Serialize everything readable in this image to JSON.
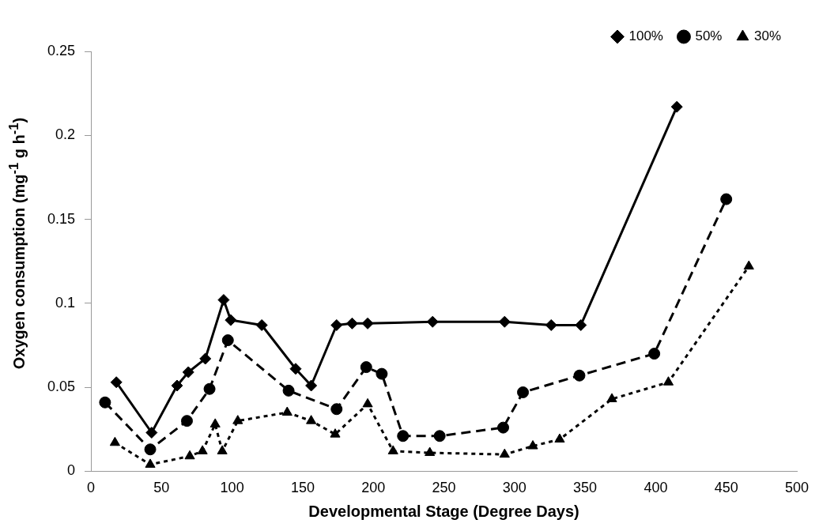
{
  "chart_data": {
    "type": "line",
    "xlabel": "Developmental Stage (Degree Days)",
    "ylabel": "Oxygen consumption (mg$^{-1}$ g h$^{-1}$)",
    "xlim": [
      0,
      500
    ],
    "xticks": [
      0,
      50,
      100,
      150,
      200,
      250,
      300,
      350,
      400,
      450,
      500
    ],
    "ylim": [
      0,
      0.25
    ],
    "yticks": [
      0,
      0.05,
      0.1,
      0.15,
      0.2,
      0.25
    ],
    "grid": false,
    "legend": "top right",
    "series": [
      {
        "name": "100%",
        "color": "#000000",
        "marker": "diamond",
        "line_style": "solid",
        "x": [
          18,
          43,
          61,
          69,
          81,
          94,
          99,
          121,
          145,
          156,
          174,
          185,
          196,
          242,
          293,
          326,
          347,
          415
        ],
        "values": [
          0.053,
          0.023,
          0.051,
          0.059,
          0.067,
          0.102,
          0.09,
          0.087,
          0.061,
          0.051,
          0.087,
          0.088,
          0.088,
          0.089,
          0.089,
          0.087,
          0.087,
          0.217
        ]
      },
      {
        "name": "50%",
        "color": "#000000",
        "marker": "circle",
        "line_style": "dashed",
        "x": [
          10,
          42,
          68,
          84,
          97,
          140,
          174,
          195,
          206,
          221,
          247,
          292,
          306,
          346,
          399,
          450
        ],
        "values": [
          0.041,
          0.013,
          0.03,
          0.049,
          0.078,
          0.048,
          0.037,
          0.062,
          0.058,
          0.021,
          0.021,
          0.026,
          0.047,
          0.057,
          0.07,
          0.162
        ]
      },
      {
        "name": "30%",
        "color": "#000000",
        "marker": "triangle",
        "line_style": "dotted",
        "x": [
          17,
          42,
          70,
          79,
          88,
          93,
          104,
          139,
          156,
          173,
          196,
          214,
          240,
          293,
          313,
          332,
          369,
          409,
          466
        ],
        "values": [
          0.017,
          0.004,
          0.009,
          0.012,
          0.028,
          0.012,
          0.03,
          0.035,
          0.03,
          0.022,
          0.04,
          0.012,
          0.011,
          0.01,
          0.015,
          0.019,
          0.043,
          0.053,
          0.122
        ]
      }
    ]
  }
}
